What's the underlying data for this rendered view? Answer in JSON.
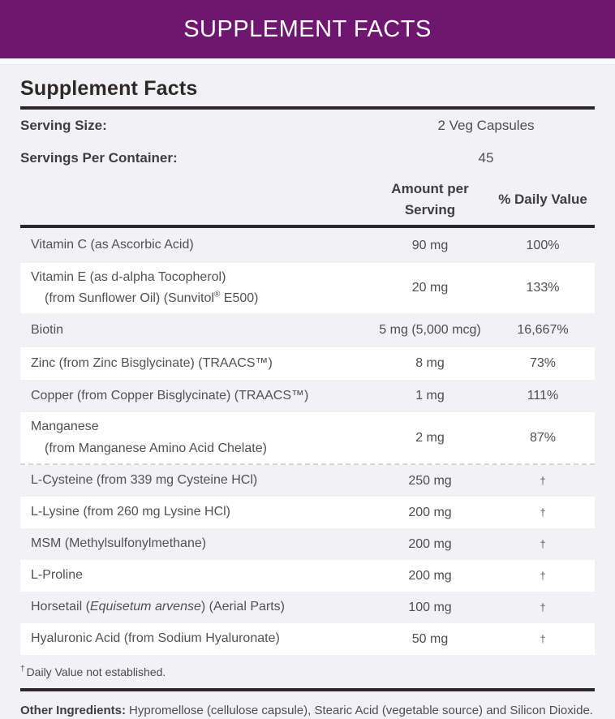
{
  "banner": {
    "title": "SUPPLEMENT FACTS"
  },
  "panel": {
    "heading": "Supplement Facts",
    "serving_size": {
      "label": "Serving Size:",
      "value": "2 Veg Capsules"
    },
    "servings_per_container": {
      "label": "Servings Per Container:",
      "value": "45"
    },
    "columns": {
      "amount_line1": "Amount per",
      "amount_line2": "Serving",
      "daily_value": "% Daily Value"
    }
  },
  "table": {
    "rows": [
      {
        "name": "Vitamin C (as Ascorbic Acid)",
        "amount": "90 mg",
        "daily_value": "100%"
      },
      {
        "line1": "Vitamin E (as d-alpha Tocopherol)",
        "line2_pre": "(from Sunflower Oil) (Sunvitol",
        "line2_sup": "®",
        "line2_post": " E500)",
        "amount": "20 mg",
        "daily_value": "133%"
      },
      {
        "name": "Biotin",
        "amount": "5 mg (5,000 mcg)",
        "daily_value": "16,667%"
      },
      {
        "name": "Zinc (from Zinc Bisglycinate) (TRAACS™)",
        "amount": "8 mg",
        "daily_value": "73%"
      },
      {
        "name": "Copper (from Copper Bisglycinate) (TRAACS™)",
        "amount": "1 mg",
        "daily_value": "111%"
      },
      {
        "line1": "Manganese",
        "line2": "(from Manganese Amino Acid Chelate)",
        "amount": "2 mg",
        "daily_value": "87%"
      },
      {
        "name": "L-Cysteine (from 339 mg Cysteine HCl)",
        "amount": "250 mg",
        "daily_value": "†"
      },
      {
        "name": "L-Lysine (from 260 mg Lysine HCl)",
        "amount": "200 mg",
        "daily_value": "†"
      },
      {
        "name": "MSM (Methylsulfonylmethane)",
        "amount": "200 mg",
        "daily_value": "†"
      },
      {
        "name": "L-Proline",
        "amount": "200 mg",
        "daily_value": "†"
      },
      {
        "name_pre": "Horsetail (",
        "name_italic": "Equisetum arvense",
        "name_post": ") (Aerial Parts)",
        "amount": "100 mg",
        "daily_value": "†"
      },
      {
        "name": "Hyaluronic Acid (from Sodium Hyaluronate)",
        "amount": "50 mg",
        "daily_value": "†"
      }
    ]
  },
  "footnote": {
    "dagger": "†",
    "text": "Daily Value not established."
  },
  "other_ingredients": {
    "label": "Other Ingredients:",
    "text": "Hypromellose (cellulose capsule), Stearic Acid (vegetable source) and Silicon Dioxide."
  },
  "colors": {
    "brand_purple": "#6F1670",
    "page_background": "#F2F2F4",
    "row_white": "#FFFFFF",
    "rule_dark": "#2B272A",
    "body_text": "#525254"
  }
}
